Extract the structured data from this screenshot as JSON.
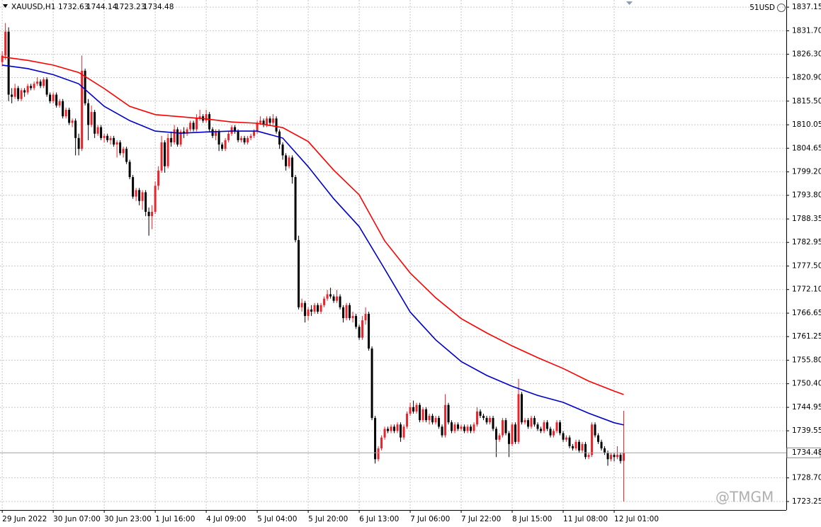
{
  "chart_data": {
    "type": "candlestick",
    "title": "XAUUSD,H1",
    "account": "51USD",
    "watermark": "@TMGM",
    "up_color": "#e8242c",
    "down_color": "#000000",
    "grid": true,
    "xlim": [
      -0.7,
      246
    ],
    "ylim": [
      1721.3,
      1838.8
    ],
    "xticks": [
      {
        "value": 0,
        "label": "29 Jun 2022"
      },
      {
        "value": 16,
        "label": "30 Jun 07:00"
      },
      {
        "value": 32,
        "label": "30 Jun 23:00"
      },
      {
        "value": 48,
        "label": "1 Jul 16:00"
      },
      {
        "value": 64,
        "label": "4 Jul 09:00"
      },
      {
        "value": 80,
        "label": "5 Jul 04:00"
      },
      {
        "value": 96,
        "label": "5 Jul 20:00"
      },
      {
        "value": 112,
        "label": "6 Jul 13:00"
      },
      {
        "value": 128,
        "label": "7 Jul 06:00"
      },
      {
        "value": 144,
        "label": "7 Jul 22:00"
      },
      {
        "value": 160,
        "label": "8 Jul 15:00"
      },
      {
        "value": 176,
        "label": "11 Jul 08:00"
      },
      {
        "value": 192,
        "label": "12 Jul 01:00"
      }
    ],
    "yticks": [
      1837.15,
      {
        "value": 1831.7,
        "label": "1831.70"
      },
      {
        "value": 1826.3,
        "label": "1826.30"
      },
      {
        "value": 1820.9,
        "label": "1820.90"
      },
      {
        "value": 1815.5,
        "label": "1815.50"
      },
      1810.05,
      1804.65,
      {
        "value": 1799.2,
        "label": "1799.20"
      },
      {
        "value": 1793.8,
        "label": "1793.80"
      },
      1788.35,
      1782.95,
      {
        "value": 1777.5,
        "label": "1777.50"
      },
      {
        "value": 1772.1,
        "label": "1772.10"
      },
      1766.65,
      1761.25,
      {
        "value": 1755.8,
        "label": "1755.80"
      },
      {
        "value": 1750.4,
        "label": "1750.40"
      },
      1744.95,
      1739.55,
      {
        "value": 1728.7,
        "label": "1728.70"
      },
      1723.25
    ],
    "values": [
      [
        1824.5,
        1827.0,
        1823.5,
        1826.0
      ],
      [
        1826.0,
        1833.5,
        1825.0,
        1831.5
      ],
      [
        1831.5,
        1832.5,
        1815.5,
        1817.0
      ],
      [
        1817.0,
        1818.5,
        1815.0,
        1816.5
      ],
      [
        1816.5,
        1819.5,
        1816.0,
        1818.5
      ],
      [
        1818.5,
        1819.0,
        1815.5,
        1816.0
      ],
      [
        1816.0,
        1818.5,
        1815.5,
        1818.0
      ],
      [
        1818.0,
        1818.5,
        1816.5,
        1817.5
      ],
      [
        1817.5,
        1819.5,
        1817.0,
        1819.0
      ],
      [
        1819.0,
        1819.5,
        1818.0,
        1818.5
      ],
      [
        1818.5,
        1820.0,
        1818.0,
        1819.5
      ],
      [
        1819.5,
        1821.0,
        1819.0,
        1820.0
      ],
      [
        1820.0,
        1820.5,
        1818.5,
        1819.0
      ],
      [
        1819.0,
        1821.0,
        1818.5,
        1820.5
      ],
      [
        1820.5,
        1821.0,
        1816.5,
        1817.0
      ],
      [
        1817.0,
        1817.5,
        1815.0,
        1815.5
      ],
      [
        1815.5,
        1817.5,
        1815.0,
        1817.0
      ],
      [
        1817.0,
        1817.5,
        1814.0,
        1814.5
      ],
      [
        1814.5,
        1816.0,
        1814.0,
        1815.5
      ],
      [
        1815.5,
        1816.0,
        1811.5,
        1812.0
      ],
      [
        1812.0,
        1814.0,
        1811.5,
        1813.5
      ],
      [
        1813.5,
        1814.0,
        1810.0,
        1810.5
      ],
      [
        1810.5,
        1811.5,
        1809.5,
        1811.0
      ],
      [
        1811.0,
        1811.5,
        1803.0,
        1807.0
      ],
      [
        1807.0,
        1808.0,
        1803.0,
        1804.5
      ],
      [
        1804.5,
        1826.0,
        1804.0,
        1822.5
      ],
      [
        1822.5,
        1823.0,
        1814.5,
        1815.0
      ],
      [
        1815.0,
        1816.0,
        1806.5,
        1810.0
      ],
      [
        1810.0,
        1814.5,
        1809.5,
        1813.0
      ],
      [
        1813.0,
        1813.5,
        1807.0,
        1808.0
      ],
      [
        1808.0,
        1810.0,
        1807.5,
        1809.5
      ],
      [
        1809.5,
        1810.0,
        1806.5,
        1807.0
      ],
      [
        1807.0,
        1808.0,
        1806.0,
        1807.5
      ],
      [
        1807.5,
        1808.0,
        1806.0,
        1806.5
      ],
      [
        1806.5,
        1807.5,
        1805.5,
        1807.0
      ],
      [
        1807.0,
        1807.5,
        1805.0,
        1805.5
      ],
      [
        1805.5,
        1806.5,
        1802.5,
        1806.0
      ],
      [
        1806.0,
        1806.5,
        1803.0,
        1803.5
      ],
      [
        1803.5,
        1805.0,
        1802.5,
        1804.5
      ],
      [
        1804.5,
        1805.0,
        1801.0,
        1801.5
      ],
      [
        1801.5,
        1802.0,
        1797.5,
        1798.0
      ],
      [
        1798.0,
        1798.5,
        1793.0,
        1793.5
      ],
      [
        1793.5,
        1795.5,
        1792.5,
        1795.0
      ],
      [
        1795.0,
        1795.5,
        1791.5,
        1792.5
      ],
      [
        1792.5,
        1795.0,
        1790.5,
        1794.5
      ],
      [
        1794.5,
        1795.0,
        1789.0,
        1790.0
      ],
      [
        1790.0,
        1791.0,
        1784.5,
        1789.0
      ],
      [
        1789.0,
        1791.5,
        1786.0,
        1790.0
      ],
      [
        1790.0,
        1797.0,
        1789.5,
        1796.0
      ],
      [
        1796.0,
        1800.5,
        1795.0,
        1799.5
      ],
      [
        1799.5,
        1807.5,
        1799.0,
        1806.0
      ],
      [
        1806.0,
        1806.5,
        1799.0,
        1800.5
      ],
      [
        1800.5,
        1808.0,
        1800.0,
        1807.0
      ],
      [
        1807.0,
        1808.5,
        1805.0,
        1806.0
      ],
      [
        1806.0,
        1810.0,
        1805.5,
        1809.0
      ],
      [
        1809.0,
        1809.5,
        1805.0,
        1805.5
      ],
      [
        1805.5,
        1809.0,
        1805.0,
        1808.5
      ],
      [
        1808.5,
        1809.5,
        1807.0,
        1808.0
      ],
      [
        1808.0,
        1809.5,
        1807.5,
        1809.0
      ],
      [
        1809.0,
        1811.0,
        1808.5,
        1810.5
      ],
      [
        1810.5,
        1811.0,
        1808.5,
        1809.0
      ],
      [
        1809.0,
        1812.5,
        1808.5,
        1811.5
      ],
      [
        1811.5,
        1813.5,
        1811.0,
        1812.0
      ],
      [
        1812.0,
        1812.5,
        1810.5,
        1811.0
      ],
      [
        1811.0,
        1813.5,
        1810.5,
        1812.5
      ],
      [
        1812.5,
        1813.0,
        1808.5,
        1809.0
      ],
      [
        1809.0,
        1809.5,
        1807.0,
        1807.5
      ],
      [
        1807.5,
        1809.0,
        1806.5,
        1808.5
      ],
      [
        1808.5,
        1809.0,
        1804.0,
        1805.5
      ],
      [
        1805.5,
        1806.0,
        1804.0,
        1804.5
      ],
      [
        1804.5,
        1807.0,
        1804.0,
        1806.5
      ],
      [
        1806.5,
        1808.5,
        1806.0,
        1808.0
      ],
      [
        1808.0,
        1810.0,
        1807.5,
        1809.5
      ],
      [
        1809.5,
        1810.0,
        1808.0,
        1808.5
      ],
      [
        1808.5,
        1809.0,
        1806.0,
        1806.5
      ],
      [
        1806.5,
        1807.5,
        1806.0,
        1807.0
      ],
      [
        1807.0,
        1807.5,
        1805.5,
        1806.0
      ],
      [
        1806.0,
        1807.5,
        1805.5,
        1807.0
      ],
      [
        1807.0,
        1808.0,
        1806.5,
        1807.5
      ],
      [
        1807.5,
        1809.0,
        1807.0,
        1808.5
      ],
      [
        1808.5,
        1811.0,
        1808.0,
        1810.5
      ],
      [
        1810.5,
        1812.0,
        1810.0,
        1811.0
      ],
      [
        1811.0,
        1811.5,
        1809.5,
        1810.0
      ],
      [
        1810.0,
        1812.0,
        1809.5,
        1811.5
      ],
      [
        1811.5,
        1812.0,
        1810.0,
        1810.5
      ],
      [
        1810.5,
        1812.5,
        1810.0,
        1811.5
      ],
      [
        1811.5,
        1812.0,
        1808.0,
        1808.5
      ],
      [
        1808.5,
        1809.0,
        1804.5,
        1805.5
      ],
      [
        1805.5,
        1806.0,
        1802.0,
        1803.0
      ],
      [
        1803.0,
        1803.5,
        1799.5,
        1800.5
      ],
      [
        1800.5,
        1803.0,
        1800.0,
        1802.5
      ],
      [
        1802.5,
        1803.0,
        1796.5,
        1798.0
      ],
      [
        1798.0,
        1798.5,
        1783.0,
        1783.5
      ],
      [
        1783.5,
        1784.5,
        1767.5,
        1768.0
      ],
      [
        1768.0,
        1770.0,
        1767.0,
        1769.0
      ],
      [
        1769.0,
        1769.5,
        1764.5,
        1766.0
      ],
      [
        1766.0,
        1768.0,
        1765.0,
        1767.5
      ],
      [
        1767.5,
        1768.5,
        1766.0,
        1767.0
      ],
      [
        1767.0,
        1769.0,
        1766.5,
        1768.5
      ],
      [
        1768.5,
        1769.0,
        1766.5,
        1767.0
      ],
      [
        1767.0,
        1769.0,
        1766.5,
        1768.5
      ],
      [
        1768.5,
        1770.5,
        1768.0,
        1770.0
      ],
      [
        1770.0,
        1772.0,
        1769.5,
        1771.0
      ],
      [
        1771.0,
        1772.5,
        1770.0,
        1770.5
      ],
      [
        1770.5,
        1771.0,
        1769.0,
        1769.5
      ],
      [
        1769.5,
        1772.0,
        1769.0,
        1770.5
      ],
      [
        1770.5,
        1771.0,
        1767.5,
        1768.0
      ],
      [
        1768.0,
        1768.5,
        1764.5,
        1765.5
      ],
      [
        1765.5,
        1769.0,
        1765.0,
        1768.5
      ],
      [
        1768.5,
        1769.0,
        1765.0,
        1765.5
      ],
      [
        1765.5,
        1767.0,
        1764.5,
        1766.0
      ],
      [
        1766.0,
        1766.5,
        1763.0,
        1763.5
      ],
      [
        1763.5,
        1764.0,
        1760.5,
        1761.0
      ],
      [
        1761.0,
        1766.0,
        1760.5,
        1765.0
      ],
      [
        1765.0,
        1768.0,
        1764.0,
        1766.5
      ],
      [
        1766.5,
        1767.0,
        1758.0,
        1758.5
      ],
      [
        1758.5,
        1759.0,
        1742.0,
        1742.5
      ],
      [
        1742.5,
        1743.0,
        1732.0,
        1733.0
      ],
      [
        1733.0,
        1736.0,
        1732.5,
        1735.5
      ],
      [
        1735.5,
        1738.5,
        1735.0,
        1738.0
      ],
      [
        1738.0,
        1740.5,
        1737.5,
        1740.0
      ],
      [
        1740.0,
        1740.5,
        1739.0,
        1739.5
      ],
      [
        1739.5,
        1741.0,
        1739.0,
        1740.5
      ],
      [
        1740.5,
        1741.0,
        1739.0,
        1739.5
      ],
      [
        1739.5,
        1741.5,
        1739.0,
        1741.0
      ],
      [
        1741.0,
        1741.5,
        1737.0,
        1738.0
      ],
      [
        1738.0,
        1741.0,
        1737.5,
        1740.5
      ],
      [
        1740.5,
        1744.0,
        1740.0,
        1743.5
      ],
      [
        1743.5,
        1746.0,
        1743.0,
        1745.0
      ],
      [
        1745.0,
        1746.5,
        1743.5,
        1744.0
      ],
      [
        1744.0,
        1746.0,
        1743.5,
        1745.5
      ],
      [
        1745.5,
        1746.0,
        1741.5,
        1742.0
      ],
      [
        1742.0,
        1745.0,
        1741.5,
        1744.5
      ],
      [
        1744.5,
        1745.0,
        1741.5,
        1742.0
      ],
      [
        1742.0,
        1743.5,
        1741.0,
        1743.0
      ],
      [
        1743.0,
        1743.5,
        1741.0,
        1741.5
      ],
      [
        1741.5,
        1743.0,
        1741.0,
        1742.5
      ],
      [
        1742.5,
        1743.0,
        1740.0,
        1740.5
      ],
      [
        1740.5,
        1741.0,
        1738.0,
        1738.5
      ],
      [
        1738.5,
        1748.0,
        1738.0,
        1745.5
      ],
      [
        1745.5,
        1746.0,
        1741.0,
        1741.5
      ],
      [
        1741.5,
        1742.0,
        1739.0,
        1739.5
      ],
      [
        1739.5,
        1741.5,
        1739.0,
        1741.0
      ],
      [
        1741.0,
        1741.5,
        1739.5,
        1740.0
      ],
      [
        1740.0,
        1741.0,
        1739.5,
        1740.5
      ],
      [
        1740.5,
        1741.0,
        1739.0,
        1739.5
      ],
      [
        1739.5,
        1741.0,
        1739.0,
        1740.5
      ],
      [
        1740.5,
        1741.0,
        1739.0,
        1739.5
      ],
      [
        1739.5,
        1741.5,
        1739.0,
        1741.0
      ],
      [
        1741.0,
        1745.0,
        1740.5,
        1744.0
      ],
      [
        1744.0,
        1744.5,
        1742.5,
        1743.0
      ],
      [
        1743.0,
        1743.5,
        1742.0,
        1742.5
      ],
      [
        1742.5,
        1743.0,
        1741.0,
        1741.5
      ],
      [
        1741.5,
        1743.0,
        1741.0,
        1742.5
      ],
      [
        1742.5,
        1743.0,
        1739.5,
        1740.0
      ],
      [
        1740.0,
        1740.5,
        1733.5,
        1737.5
      ],
      [
        1737.5,
        1739.0,
        1737.0,
        1738.5
      ],
      [
        1738.5,
        1742.5,
        1738.0,
        1742.0
      ],
      [
        1742.0,
        1742.5,
        1738.5,
        1739.0
      ],
      [
        1739.0,
        1739.5,
        1733.5,
        1736.5
      ],
      [
        1736.5,
        1741.5,
        1736.0,
        1741.0
      ],
      [
        1741.0,
        1741.5,
        1736.5,
        1737.0
      ],
      [
        1737.0,
        1751.5,
        1736.5,
        1748.0
      ],
      [
        1748.0,
        1748.5,
        1741.0,
        1741.5
      ],
      [
        1741.5,
        1742.5,
        1741.0,
        1742.0
      ],
      [
        1742.0,
        1742.5,
        1740.0,
        1740.5
      ],
      [
        1740.5,
        1743.0,
        1740.0,
        1742.5
      ],
      [
        1742.5,
        1743.0,
        1740.5,
        1741.0
      ],
      [
        1741.0,
        1741.5,
        1739.5,
        1740.0
      ],
      [
        1740.0,
        1740.5,
        1739.0,
        1739.5
      ],
      [
        1739.5,
        1742.0,
        1739.0,
        1741.5
      ],
      [
        1741.5,
        1742.0,
        1739.5,
        1740.0
      ],
      [
        1740.0,
        1740.5,
        1738.0,
        1738.5
      ],
      [
        1738.5,
        1740.0,
        1738.0,
        1739.5
      ],
      [
        1739.5,
        1742.0,
        1739.0,
        1741.5
      ],
      [
        1741.5,
        1742.0,
        1738.5,
        1739.0
      ],
      [
        1739.0,
        1739.5,
        1737.0,
        1737.5
      ],
      [
        1737.5,
        1738.5,
        1737.0,
        1738.0
      ],
      [
        1738.0,
        1738.5,
        1735.5,
        1736.0
      ],
      [
        1736.0,
        1736.5,
        1735.0,
        1735.5
      ],
      [
        1735.5,
        1737.5,
        1735.0,
        1737.0
      ],
      [
        1737.0,
        1737.5,
        1734.5,
        1735.0
      ],
      [
        1735.0,
        1737.0,
        1734.5,
        1736.5
      ],
      [
        1736.5,
        1737.0,
        1733.0,
        1733.5
      ],
      [
        1733.5,
        1734.5,
        1733.0,
        1734.0
      ],
      [
        1734.0,
        1741.5,
        1733.5,
        1741.0
      ],
      [
        1741.0,
        1741.5,
        1738.0,
        1738.5
      ],
      [
        1738.5,
        1739.0,
        1736.5,
        1737.0
      ],
      [
        1737.0,
        1737.5,
        1735.0,
        1735.5
      ],
      [
        1735.5,
        1736.0,
        1734.0,
        1734.5
      ],
      [
        1734.5,
        1735.0,
        1731.5,
        1733.0
      ],
      [
        1733.0,
        1734.5,
        1732.5,
        1734.0
      ],
      [
        1734.0,
        1734.5,
        1732.5,
        1733.5
      ],
      [
        1733.5,
        1736.0,
        1733.0,
        1734.0
      ],
      [
        1734.0,
        1734.5,
        1732.0,
        1732.6
      ],
      [
        1732.63,
        1744.14,
        1723.23,
        1734.48
      ]
    ],
    "lines": [
      {
        "color": "#0000cc",
        "x": [
          0,
          8,
          16,
          24,
          32,
          40,
          48,
          56,
          64,
          72,
          80,
          88,
          96,
          104,
          112,
          120,
          128,
          136,
          144,
          152,
          160,
          168,
          176,
          184,
          192,
          195
        ],
        "values": [
          1823.8,
          1823.0,
          1821.6,
          1819.5,
          1814.3,
          1811.0,
          1808.6,
          1808.1,
          1808.4,
          1808.6,
          1808.6,
          1807.0,
          1800.4,
          1793.0,
          1786.6,
          1776.8,
          1766.9,
          1760.5,
          1755.5,
          1752.3,
          1749.8,
          1747.7,
          1746.1,
          1743.6,
          1741.4,
          1740.9
        ]
      },
      {
        "color": "#ff0000",
        "x": [
          0,
          8,
          16,
          24,
          32,
          40,
          48,
          56,
          64,
          72,
          80,
          88,
          96,
          104,
          112,
          120,
          128,
          136,
          144,
          152,
          160,
          168,
          176,
          184,
          192,
          195
        ],
        "values": [
          1825.7,
          1824.9,
          1823.8,
          1822.1,
          1818.4,
          1814.3,
          1812.4,
          1811.9,
          1811.4,
          1810.7,
          1810.4,
          1809.4,
          1806.2,
          1799.6,
          1793.9,
          1783.3,
          1775.9,
          1770.2,
          1765.4,
          1762.1,
          1759.1,
          1756.4,
          1753.9,
          1751.0,
          1748.7,
          1747.9
        ]
      }
    ]
  }
}
